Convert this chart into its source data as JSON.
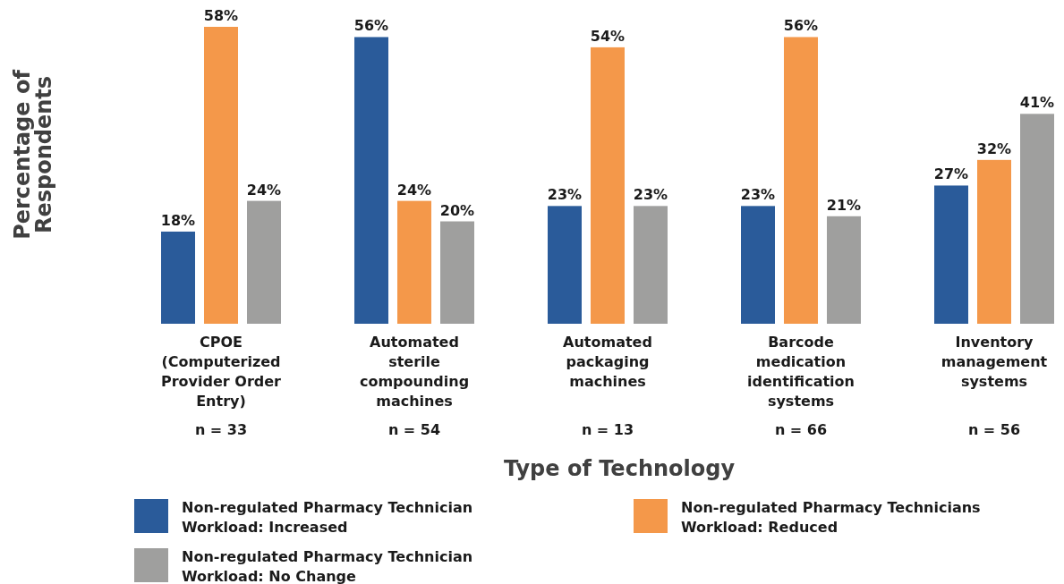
{
  "chart_data": {
    "type": "bar",
    "xlabel": "Type of Technology",
    "ylabel": "Percentage of Respondents",
    "categories": [
      "CPOE (Computerized Provider Order Entry)",
      "Automated sterile compounding machines",
      "Automated packaging machines",
      "Barcode medication identification systems",
      "Inventory management systems"
    ],
    "series": [
      {
        "name": "Non-regulated Pharmacy Technician Workload: Increased",
        "color": "#2a5b9a",
        "values": [
          18,
          56,
          23,
          23,
          27
        ],
        "value_labels": [
          "18%",
          "56%",
          "23%",
          "23%",
          "27%"
        ]
      },
      {
        "name": "Non-regulated Pharmacy Technicians Workload: Reduced",
        "color": "#f4984a",
        "values": [
          58,
          24,
          54,
          56,
          32
        ],
        "value_labels": [
          "58%",
          "24%",
          "54%",
          "56%",
          "32%"
        ]
      },
      {
        "name": "Non-regulated Pharmacy Technician Workload: No Change",
        "color": "#9f9f9e",
        "values": [
          24,
          20,
          23,
          21,
          41
        ],
        "value_labels": [
          "24%",
          "20%",
          "23%",
          "21%",
          "41%"
        ]
      }
    ],
    "annotations": [
      "n = 33",
      "n = 54",
      "n = 13",
      "n = 66",
      "n = 56"
    ],
    "legend": "bottom"
  }
}
